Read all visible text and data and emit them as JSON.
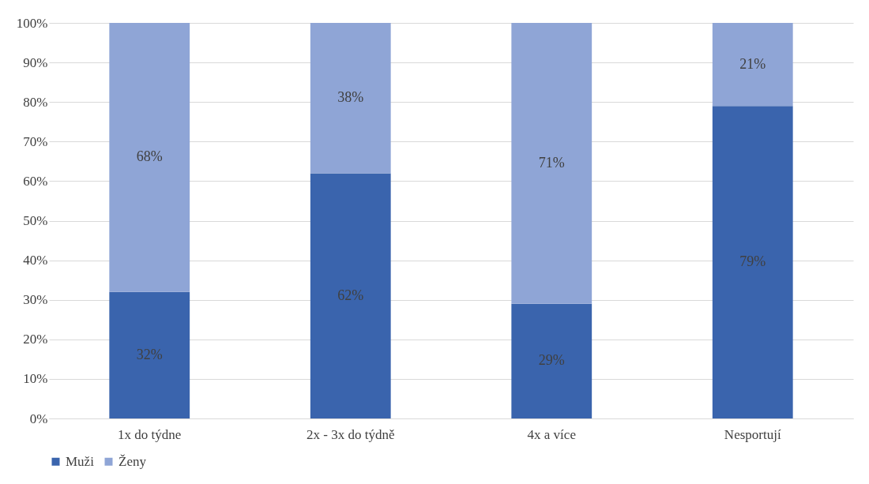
{
  "chart_data": {
    "type": "bar",
    "stacked": true,
    "categories": [
      "1x do týdne",
      "2x - 3x do týdně",
      "4x a více",
      "Nesportují"
    ],
    "series": [
      {
        "name": "Muži",
        "color": "#3a64ad",
        "values": [
          32,
          62,
          29,
          79
        ],
        "value_labels": [
          "32%",
          "62%",
          "29%",
          "79%"
        ]
      },
      {
        "name": "Ženy",
        "color": "#8fa5d6",
        "values": [
          68,
          38,
          71,
          21
        ],
        "value_labels": [
          "68%",
          "38%",
          "71%",
          "21%"
        ]
      }
    ],
    "ylim": [
      0,
      100
    ],
    "yticks": [
      {
        "value": 0,
        "label": "0%"
      },
      {
        "value": 10,
        "label": "10%"
      },
      {
        "value": 20,
        "label": "20%"
      },
      {
        "value": 30,
        "label": "30%"
      },
      {
        "value": 40,
        "label": "40%"
      },
      {
        "value": 50,
        "label": "50%"
      },
      {
        "value": 60,
        "label": "60%"
      },
      {
        "value": 70,
        "label": "70%"
      },
      {
        "value": 80,
        "label": "80%"
      },
      {
        "value": 90,
        "label": "90%"
      },
      {
        "value": 100,
        "label": "100%"
      }
    ],
    "grid": "y",
    "legend": "bottom"
  }
}
